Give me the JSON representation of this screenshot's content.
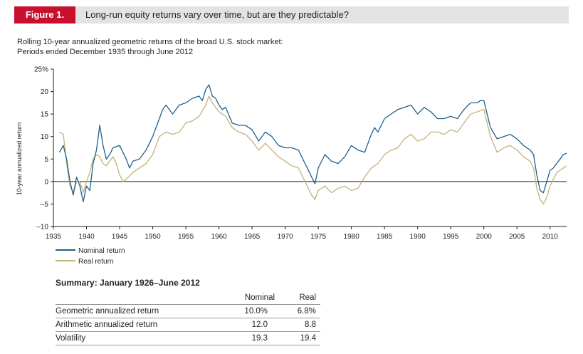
{
  "figure": {
    "badge": "Figure 1.",
    "title": "Long-run equity returns vary over time, but are they predictable?",
    "subtitle_line1": "Rolling 10-year annualized geometric returns of the broad U.S. stock market:",
    "subtitle_line2": "Periods ended December 1935 through June 2012"
  },
  "colors": {
    "nominal": "#1f5f8b",
    "real": "#c3b27a",
    "badge": "#c8102e",
    "header_bg": "#e3e3e3"
  },
  "chart_data": {
    "type": "line",
    "ylabel": "10-year annualized return",
    "ylim": [
      -10,
      25
    ],
    "xlim": [
      1935,
      2012.5
    ],
    "yticks": [
      "25%",
      "20",
      "15",
      "10",
      "5",
      "0",
      "–5",
      "–10"
    ],
    "ytick_values": [
      25,
      20,
      15,
      10,
      5,
      0,
      -5,
      -10
    ],
    "xticks": [
      "1935",
      "1940",
      "1945",
      "1950",
      "1955",
      "1960",
      "1965",
      "1970",
      "1975",
      "1980",
      "1985",
      "1990",
      "1995",
      "2000",
      "2005",
      "2010"
    ],
    "xtick_values": [
      1935,
      1940,
      1945,
      1950,
      1955,
      1960,
      1965,
      1970,
      1975,
      1980,
      1985,
      1990,
      1995,
      2000,
      2005,
      2010
    ],
    "grid": false,
    "legend_position": "bottom-left",
    "series": [
      {
        "name": "Nominal return",
        "points": [
          [
            1935.9,
            6.5
          ],
          [
            1936.5,
            8.0
          ],
          [
            1937.0,
            5.0
          ],
          [
            1937.5,
            0.0
          ],
          [
            1938.0,
            -3.0
          ],
          [
            1938.5,
            1.0
          ],
          [
            1939.0,
            -1.0
          ],
          [
            1939.5,
            -4.5
          ],
          [
            1940.0,
            -1.0
          ],
          [
            1940.5,
            -2.0
          ],
          [
            1941.0,
            4.0
          ],
          [
            1941.5,
            7.0
          ],
          [
            1942.0,
            12.5
          ],
          [
            1942.5,
            8.0
          ],
          [
            1943.0,
            5.0
          ],
          [
            1943.5,
            6.0
          ],
          [
            1944.0,
            7.5
          ],
          [
            1945.0,
            8.0
          ],
          [
            1945.5,
            6.5
          ],
          [
            1946.0,
            5.0
          ],
          [
            1946.5,
            3.0
          ],
          [
            1947.0,
            4.5
          ],
          [
            1948.0,
            5.0
          ],
          [
            1949.0,
            7.0
          ],
          [
            1949.5,
            8.5
          ],
          [
            1950.0,
            10.0
          ],
          [
            1950.5,
            12.0
          ],
          [
            1951.0,
            14.0
          ],
          [
            1951.5,
            16.0
          ],
          [
            1952.0,
            17.0
          ],
          [
            1953.0,
            15.0
          ],
          [
            1954.0,
            17.0
          ],
          [
            1955.0,
            17.5
          ],
          [
            1956.0,
            18.5
          ],
          [
            1957.0,
            19.0
          ],
          [
            1957.5,
            18.0
          ],
          [
            1958.0,
            20.5
          ],
          [
            1958.5,
            21.5
          ],
          [
            1959.0,
            19.0
          ],
          [
            1959.5,
            18.5
          ],
          [
            1960.0,
            17.0
          ],
          [
            1960.5,
            16.0
          ],
          [
            1961.0,
            16.5
          ],
          [
            1962.0,
            13.0
          ],
          [
            1963.0,
            12.5
          ],
          [
            1964.0,
            12.5
          ],
          [
            1965.0,
            11.5
          ],
          [
            1966.0,
            9.0
          ],
          [
            1967.0,
            11.0
          ],
          [
            1968.0,
            10.0
          ],
          [
            1969.0,
            8.0
          ],
          [
            1970.0,
            7.5
          ],
          [
            1971.0,
            7.5
          ],
          [
            1972.0,
            7.0
          ],
          [
            1973.0,
            4.0
          ],
          [
            1973.5,
            2.5
          ],
          [
            1974.0,
            1.0
          ],
          [
            1974.5,
            -0.5
          ],
          [
            1975.0,
            3.0
          ],
          [
            1976.0,
            6.0
          ],
          [
            1977.0,
            4.5
          ],
          [
            1978.0,
            4.0
          ],
          [
            1979.0,
            5.5
          ],
          [
            1980.0,
            8.0
          ],
          [
            1981.0,
            7.0
          ],
          [
            1982.0,
            6.5
          ],
          [
            1983.0,
            10.5
          ],
          [
            1983.5,
            12.0
          ],
          [
            1984.0,
            11.0
          ],
          [
            1985.0,
            14.0
          ],
          [
            1986.0,
            15.0
          ],
          [
            1987.0,
            16.0
          ],
          [
            1988.0,
            16.5
          ],
          [
            1989.0,
            17.0
          ],
          [
            1990.0,
            15.0
          ],
          [
            1991.0,
            16.5
          ],
          [
            1992.0,
            15.5
          ],
          [
            1993.0,
            14.0
          ],
          [
            1994.0,
            14.0
          ],
          [
            1995.0,
            14.5
          ],
          [
            1996.0,
            14.0
          ],
          [
            1997.0,
            16.0
          ],
          [
            1998.0,
            17.5
          ],
          [
            1999.0,
            17.5
          ],
          [
            1999.5,
            18.0
          ],
          [
            2000.0,
            18.0
          ],
          [
            2001.0,
            12.0
          ],
          [
            2002.0,
            9.5
          ],
          [
            2003.0,
            10.0
          ],
          [
            2004.0,
            10.5
          ],
          [
            2005.0,
            9.5
          ],
          [
            2006.0,
            8.0
          ],
          [
            2007.0,
            7.0
          ],
          [
            2007.5,
            6.0
          ],
          [
            2008.0,
            1.5
          ],
          [
            2008.5,
            -2.0
          ],
          [
            2009.0,
            -2.5
          ],
          [
            2009.5,
            0.0
          ],
          [
            2010.0,
            2.5
          ],
          [
            2010.5,
            3.0
          ],
          [
            2011.0,
            4.0
          ],
          [
            2011.5,
            5.0
          ],
          [
            2012.0,
            6.0
          ],
          [
            2012.5,
            6.3
          ]
        ]
      },
      {
        "name": "Real return",
        "points": [
          [
            1935.9,
            11.0
          ],
          [
            1936.5,
            10.5
          ],
          [
            1937.0,
            4.0
          ],
          [
            1937.5,
            -1.0
          ],
          [
            1938.0,
            -2.5
          ],
          [
            1938.5,
            0.0
          ],
          [
            1939.0,
            0.0
          ],
          [
            1939.5,
            -2.5
          ],
          [
            1940.0,
            0.0
          ],
          [
            1940.5,
            2.0
          ],
          [
            1941.0,
            5.0
          ],
          [
            1941.5,
            6.0
          ],
          [
            1942.0,
            5.5
          ],
          [
            1942.5,
            4.0
          ],
          [
            1943.0,
            3.5
          ],
          [
            1944.0,
            5.5
          ],
          [
            1944.5,
            4.0
          ],
          [
            1945.0,
            1.5
          ],
          [
            1945.5,
            0.0
          ],
          [
            1946.0,
            0.5
          ],
          [
            1947.0,
            2.0
          ],
          [
            1948.0,
            3.0
          ],
          [
            1949.0,
            4.0
          ],
          [
            1950.0,
            6.0
          ],
          [
            1951.0,
            10.0
          ],
          [
            1952.0,
            11.0
          ],
          [
            1953.0,
            10.5
          ],
          [
            1954.0,
            11.0
          ],
          [
            1955.0,
            13.0
          ],
          [
            1956.0,
            13.5
          ],
          [
            1957.0,
            14.5
          ],
          [
            1958.0,
            17.0
          ],
          [
            1958.5,
            19.0
          ],
          [
            1959.0,
            17.5
          ],
          [
            1960.0,
            15.5
          ],
          [
            1961.0,
            14.5
          ],
          [
            1962.0,
            12.0
          ],
          [
            1963.0,
            11.0
          ],
          [
            1964.0,
            10.5
          ],
          [
            1965.0,
            9.0
          ],
          [
            1966.0,
            7.0
          ],
          [
            1967.0,
            8.5
          ],
          [
            1968.0,
            7.0
          ],
          [
            1969.0,
            5.5
          ],
          [
            1970.0,
            4.5
          ],
          [
            1971.0,
            3.5
          ],
          [
            1972.0,
            3.0
          ],
          [
            1973.0,
            0.0
          ],
          [
            1974.0,
            -3.0
          ],
          [
            1974.5,
            -4.0
          ],
          [
            1975.0,
            -2.0
          ],
          [
            1976.0,
            -1.0
          ],
          [
            1977.0,
            -2.5
          ],
          [
            1978.0,
            -1.5
          ],
          [
            1979.0,
            -1.0
          ],
          [
            1980.0,
            -2.0
          ],
          [
            1981.0,
            -1.5
          ],
          [
            1982.0,
            1.0
          ],
          [
            1983.0,
            3.0
          ],
          [
            1984.0,
            4.0
          ],
          [
            1985.0,
            6.0
          ],
          [
            1986.0,
            7.0
          ],
          [
            1987.0,
            7.5
          ],
          [
            1988.0,
            9.5
          ],
          [
            1989.0,
            10.5
          ],
          [
            1990.0,
            9.0
          ],
          [
            1991.0,
            9.5
          ],
          [
            1992.0,
            11.0
          ],
          [
            1993.0,
            11.0
          ],
          [
            1994.0,
            10.5
          ],
          [
            1995.0,
            11.5
          ],
          [
            1996.0,
            11.0
          ],
          [
            1997.0,
            13.0
          ],
          [
            1998.0,
            15.0
          ],
          [
            1999.0,
            15.5
          ],
          [
            2000.0,
            16.0
          ],
          [
            2001.0,
            10.0
          ],
          [
            2002.0,
            6.5
          ],
          [
            2003.0,
            7.5
          ],
          [
            2004.0,
            8.0
          ],
          [
            2005.0,
            7.0
          ],
          [
            2006.0,
            5.5
          ],
          [
            2007.0,
            4.5
          ],
          [
            2007.5,
            3.0
          ],
          [
            2008.0,
            -1.5
          ],
          [
            2008.5,
            -4.0
          ],
          [
            2009.0,
            -5.0
          ],
          [
            2009.5,
            -3.5
          ],
          [
            2010.0,
            -1.0
          ],
          [
            2010.5,
            0.5
          ],
          [
            2011.0,
            2.0
          ],
          [
            2011.5,
            2.5
          ],
          [
            2012.0,
            3.0
          ],
          [
            2012.5,
            3.5
          ]
        ]
      }
    ]
  },
  "summary": {
    "title": "Summary: January 1926–June 2012",
    "columns": [
      "Nominal",
      "Real"
    ],
    "rows": [
      {
        "label": "Geometric annualized return",
        "nominal": "10.0%",
        "real": "6.8%"
      },
      {
        "label": "Arithmetic annualized return",
        "nominal": "12.0",
        "real": "8.8"
      },
      {
        "label": "Volatility",
        "nominal": "19.3",
        "real": "19.4"
      }
    ]
  }
}
